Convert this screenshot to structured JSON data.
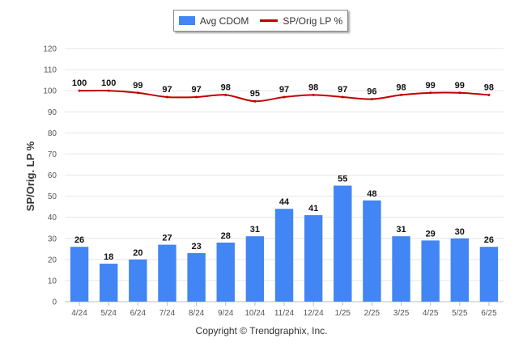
{
  "chart_data": {
    "type": "bar",
    "title": "",
    "xlabel": "",
    "ylabel": "SP/Orig. LP %",
    "ylim": [
      0,
      120
    ],
    "yticks": [
      0,
      10,
      20,
      30,
      40,
      50,
      60,
      70,
      80,
      90,
      100,
      110,
      120
    ],
    "grid": true,
    "legend_position": "top-center",
    "categories": [
      "4/24",
      "5/24",
      "6/24",
      "7/24",
      "8/24",
      "9/24",
      "10/24",
      "11/24",
      "12/24",
      "1/25",
      "2/25",
      "3/25",
      "4/25",
      "5/25",
      "6/25"
    ],
    "series": [
      {
        "name": "Avg CDOM",
        "type": "bar",
        "color": "#4285f4",
        "values": [
          26,
          18,
          20,
          27,
          23,
          28,
          31,
          44,
          41,
          55,
          48,
          31,
          29,
          30,
          26
        ]
      },
      {
        "name": "SP/Orig LP %",
        "type": "line",
        "color": "#c00000",
        "values": [
          100,
          100,
          99,
          97,
          97,
          98,
          95,
          97,
          98,
          97,
          96,
          98,
          99,
          99,
          98
        ]
      }
    ]
  },
  "footer": {
    "copyright": "Copyright © Trendgraphix, Inc."
  }
}
